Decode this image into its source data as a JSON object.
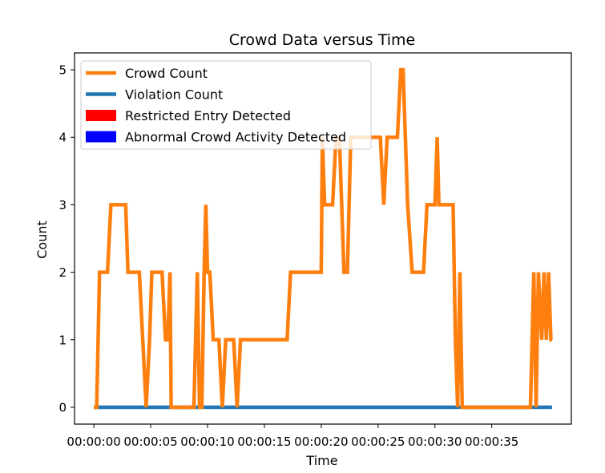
{
  "chart_data": {
    "type": "line",
    "title": "Crowd Data versus Time",
    "xlabel": "Time",
    "ylabel": "Count",
    "xlim": [
      -1.7,
      42.0
    ],
    "ylim": [
      -0.25,
      5.25
    ],
    "x_ticks": [
      {
        "value": 0,
        "label": "00:00:00"
      },
      {
        "value": 5,
        "label": "00:00:05"
      },
      {
        "value": 10,
        "label": "00:00:10"
      },
      {
        "value": 15,
        "label": "00:00:15"
      },
      {
        "value": 20,
        "label": "00:00:20"
      },
      {
        "value": 25,
        "label": "00:00:25"
      },
      {
        "value": 30,
        "label": "00:00:30"
      },
      {
        "value": 35,
        "label": "00:00:35"
      }
    ],
    "y_ticks": [
      0,
      1,
      2,
      3,
      4,
      5
    ],
    "grid": false,
    "legend_position": "upper-left",
    "series": [
      {
        "name": "Crowd Count",
        "color": "#ff7f0e",
        "style": "line",
        "points": [
          [
            0.0,
            0
          ],
          [
            0.25,
            0
          ],
          [
            0.5,
            2
          ],
          [
            1.2,
            2
          ],
          [
            1.5,
            3
          ],
          [
            2.8,
            3
          ],
          [
            3.0,
            2
          ],
          [
            4.0,
            2
          ],
          [
            4.3,
            1
          ],
          [
            4.6,
            0
          ],
          [
            4.9,
            1
          ],
          [
            5.1,
            2
          ],
          [
            6.0,
            2
          ],
          [
            6.3,
            1
          ],
          [
            6.5,
            1
          ],
          [
            6.7,
            2
          ],
          [
            6.8,
            0
          ],
          [
            8.4,
            0
          ],
          [
            8.8,
            0
          ],
          [
            9.1,
            2
          ],
          [
            9.3,
            0
          ],
          [
            9.5,
            0
          ],
          [
            9.7,
            2
          ],
          [
            9.85,
            3
          ],
          [
            10.0,
            2
          ],
          [
            10.2,
            2
          ],
          [
            10.5,
            1
          ],
          [
            11.0,
            1
          ],
          [
            11.3,
            0
          ],
          [
            11.6,
            1
          ],
          [
            12.3,
            1
          ],
          [
            12.6,
            0
          ],
          [
            12.9,
            1
          ],
          [
            17.0,
            1
          ],
          [
            17.3,
            2
          ],
          [
            20.0,
            2
          ],
          [
            20.1,
            4
          ],
          [
            20.3,
            3
          ],
          [
            21.0,
            3
          ],
          [
            21.3,
            4
          ],
          [
            21.6,
            4
          ],
          [
            22.0,
            2
          ],
          [
            22.3,
            2
          ],
          [
            22.6,
            4
          ],
          [
            25.2,
            4
          ],
          [
            25.5,
            3
          ],
          [
            25.8,
            4
          ],
          [
            26.7,
            4
          ],
          [
            27.0,
            5
          ],
          [
            27.2,
            5
          ],
          [
            27.6,
            3
          ],
          [
            28.0,
            2
          ],
          [
            29.0,
            2
          ],
          [
            29.3,
            3
          ],
          [
            30.0,
            3
          ],
          [
            30.2,
            4
          ],
          [
            30.35,
            3
          ],
          [
            31.6,
            3
          ],
          [
            31.8,
            1
          ],
          [
            32.0,
            0
          ],
          [
            32.2,
            2
          ],
          [
            32.4,
            0
          ],
          [
            38.4,
            0
          ],
          [
            38.7,
            2
          ],
          [
            38.9,
            0
          ],
          [
            39.1,
            2
          ],
          [
            39.4,
            1
          ],
          [
            39.6,
            2
          ],
          [
            39.8,
            1
          ],
          [
            40.0,
            2
          ],
          [
            40.2,
            1
          ],
          [
            40.3,
            1
          ]
        ]
      },
      {
        "name": "Violation Count",
        "color": "#1f77b4",
        "style": "line",
        "points": [
          [
            0.0,
            0
          ],
          [
            40.3,
            0
          ]
        ]
      },
      {
        "name": "Restricted Entry Detected",
        "color": "#ff0000",
        "style": "patch",
        "points": []
      },
      {
        "name": "Abnormal Crowd Activity Detected",
        "color": "#0000ff",
        "style": "patch",
        "points": []
      }
    ]
  }
}
